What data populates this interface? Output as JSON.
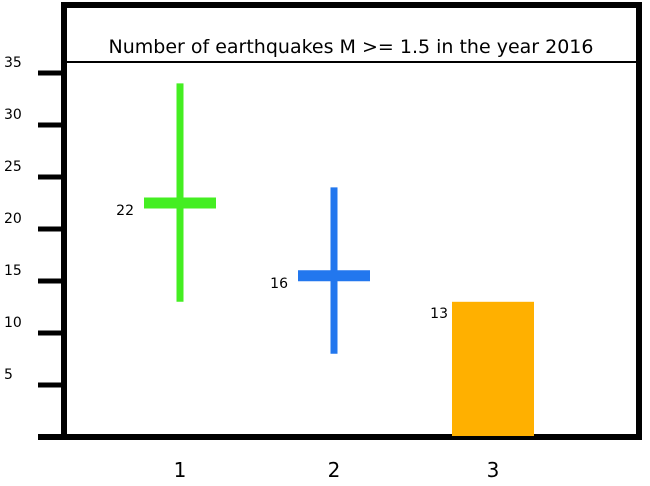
{
  "chart_data": {
    "type": "bar",
    "title": "Number of earthquakes M >= 1.5 in the year 2016",
    "xlabel": "",
    "ylabel": "",
    "categories": [
      "1",
      "2",
      "3"
    ],
    "ylim": [
      0,
      36
    ],
    "yticks": [
      5,
      10,
      15,
      20,
      25,
      30,
      35
    ],
    "grid": false,
    "series": [
      {
        "marker": "cross",
        "color": "#44ee22",
        "category_index": 0,
        "value": 22.5,
        "label": "22",
        "range": [
          13,
          34
        ]
      },
      {
        "marker": "cross",
        "color": "#2277ee",
        "category_index": 1,
        "value": 15.5,
        "label": "16",
        "range": [
          8,
          24
        ]
      },
      {
        "marker": "bar",
        "color": "#ffb000",
        "category_index": 2,
        "value": 13,
        "label": "13"
      }
    ]
  }
}
